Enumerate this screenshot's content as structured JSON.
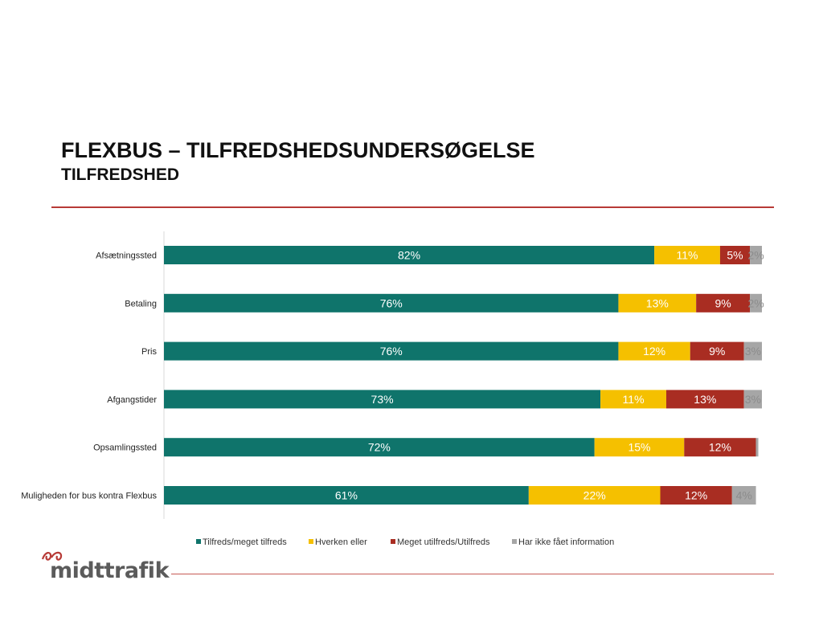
{
  "slide": {
    "title": "FLEXBUS – TILFREDSHEDSUNDERSØGELSE",
    "subtitle": "TILFREDSHED"
  },
  "logo": {
    "text": "midttrafik",
    "brand_color": "#b73a36"
  },
  "chart_data": {
    "type": "bar",
    "orientation": "horizontal",
    "stacked": true,
    "normalized_percent": true,
    "categories": [
      "Afsætningssted",
      "Betaling",
      "Pris",
      "Afgangstider",
      "Opsamlingssted",
      "Muligheden for bus kontra Flexbus"
    ],
    "series": [
      {
        "name": "Tilfreds/meget tilfreds",
        "color": "#0f746b",
        "values": [
          82,
          76,
          76,
          73,
          72,
          61
        ]
      },
      {
        "name": "Hverken eller",
        "color": "#f5c000",
        "values": [
          11,
          13,
          12,
          11,
          15,
          22
        ]
      },
      {
        "name": "Meget utilfreds/Utilfreds",
        "color": "#a92d22",
        "values": [
          5,
          9,
          9,
          13,
          12,
          12
        ]
      },
      {
        "name": "Har ikke fået information",
        "color": "#a6a6a6",
        "values": [
          2,
          2,
          3,
          3,
          0.4,
          4
        ]
      }
    ],
    "data_labels": [
      [
        "82%",
        "11%",
        "5%",
        "2%"
      ],
      [
        "76%",
        "13%",
        "9%",
        "2%"
      ],
      [
        "76%",
        "12%",
        "9%",
        "3%"
      ],
      [
        "73%",
        "11%",
        "13%",
        "3%"
      ],
      [
        "72%",
        "15%",
        "12%",
        ""
      ],
      [
        "61%",
        "22%",
        "12%",
        "4%"
      ]
    ],
    "xlim": [
      0,
      100
    ],
    "grid": false,
    "legend_position": "bottom"
  }
}
